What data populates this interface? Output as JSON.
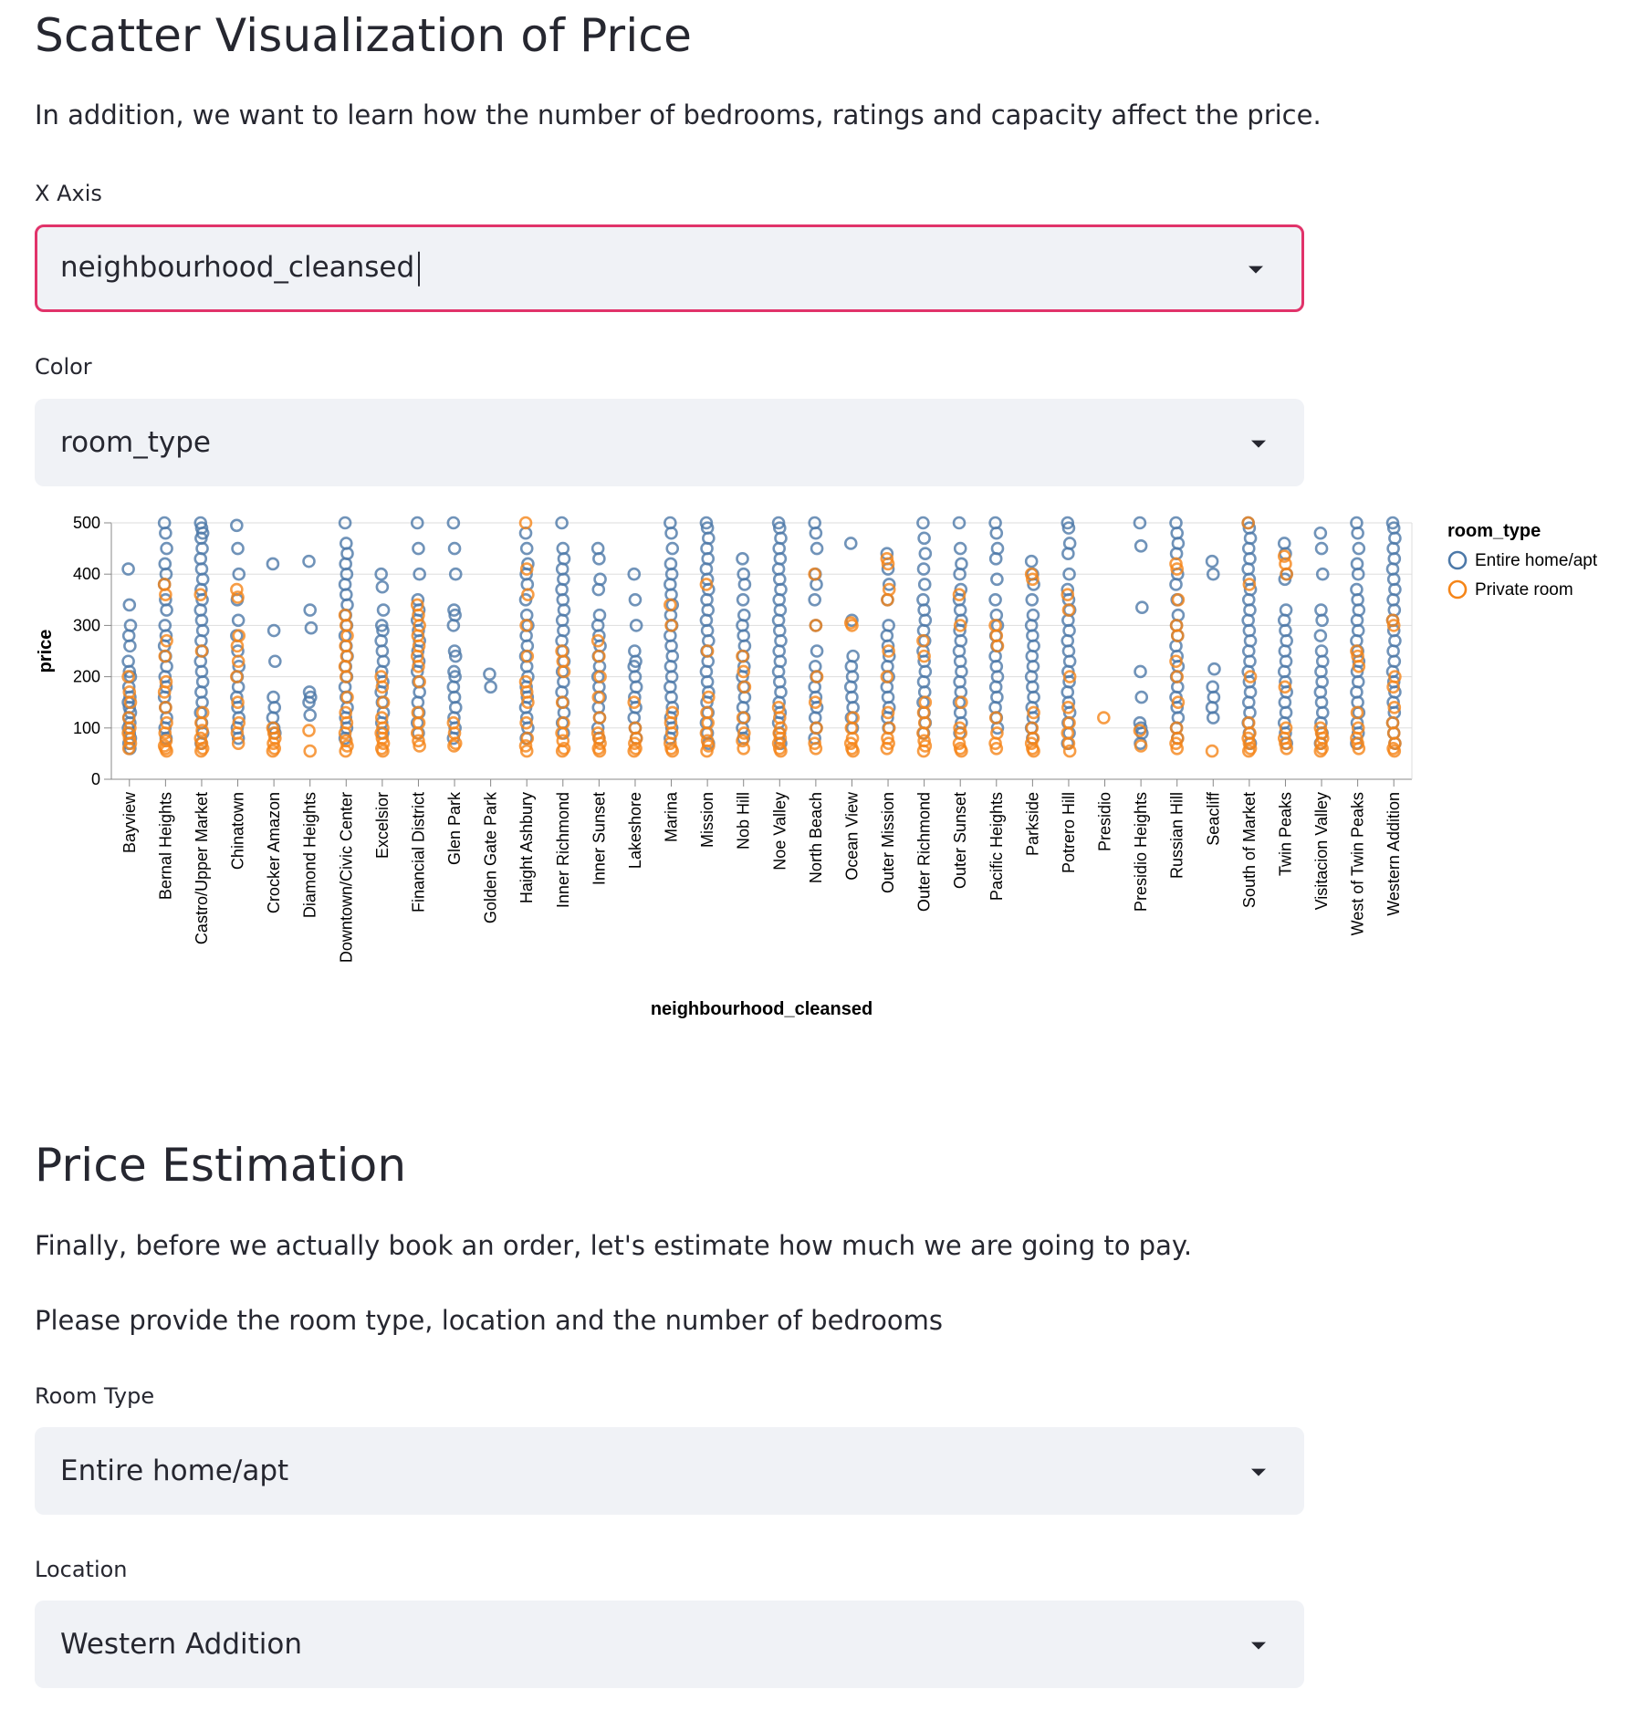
{
  "scatter_section": {
    "title": "Scatter Visualization of Price",
    "description": "In addition, we want to learn how the number of bedrooms, ratings and capacity affect the price.",
    "x_axis_label": "X Axis",
    "x_axis_value": "neighbourhood_cleansed",
    "color_label": "Color",
    "color_value": "room_type"
  },
  "estimation_section": {
    "title": "Price Estimation",
    "paragraph1": "Finally, before we actually book an order, let's estimate how much we are going to pay.",
    "paragraph2": "Please provide the room type, location and the number of bedrooms",
    "room_type_label": "Room Type",
    "room_type_value": "Entire home/apt",
    "location_label": "Location",
    "location_value": "Western Addition"
  },
  "colors": {
    "entire": "#4c78a8",
    "private": "#f58518",
    "focus_border": "#e1336a"
  },
  "chart_data": {
    "type": "scatter",
    "xlabel": "neighbourhood_cleansed",
    "ylabel": "price",
    "ylim": [
      0,
      500
    ],
    "yticks": [
      0,
      100,
      200,
      300,
      400,
      500
    ],
    "grid": true,
    "legend": {
      "title": "room_type",
      "placement": "right",
      "entries": [
        "Entire home/apt",
        "Private room"
      ]
    },
    "categories": [
      "Bayview",
      "Bernal Heights",
      "Castro/Upper Market",
      "Chinatown",
      "Crocker Amazon",
      "Diamond Heights",
      "Downtown/Civic Center",
      "Excelsior",
      "Financial District",
      "Glen Park",
      "Golden Gate Park",
      "Haight Ashbury",
      "Inner Richmond",
      "Inner Sunset",
      "Lakeshore",
      "Marina",
      "Mission",
      "Nob Hill",
      "Noe Valley",
      "North Beach",
      "Ocean View",
      "Outer Mission",
      "Outer Richmond",
      "Outer Sunset",
      "Pacific Heights",
      "Parkside",
      "Potrero Hill",
      "Presidio",
      "Presidio Heights",
      "Russian Hill",
      "Seacliff",
      "South of Market",
      "Twin Peaks",
      "Visitacion Valley",
      "West of Twin Peaks",
      "Western Addition"
    ],
    "series": [
      {
        "name": "Entire home/apt",
        "values": [
          [
            410,
            340,
            300,
            280,
            260,
            230,
            210,
            200,
            180,
            160,
            150,
            140,
            130,
            120,
            110,
            100,
            90,
            80,
            70,
            60
          ],
          [
            500,
            480,
            450,
            420,
            400,
            380,
            350,
            330,
            300,
            280,
            260,
            240,
            220,
            200,
            180,
            160,
            140,
            120,
            100,
            80
          ],
          [
            500,
            490,
            480,
            470,
            450,
            430,
            410,
            390,
            370,
            350,
            330,
            310,
            290,
            270,
            250,
            230,
            210,
            190,
            170,
            150,
            130,
            110,
            90,
            70
          ],
          [
            495,
            450,
            400,
            350,
            310,
            280,
            250,
            220,
            200,
            180,
            160,
            140,
            120,
            100,
            80
          ],
          [
            420,
            290,
            230,
            160,
            140,
            120,
            100,
            90
          ],
          [
            425,
            330,
            295,
            170,
            160,
            150,
            125
          ],
          [
            500,
            460,
            440,
            420,
            400,
            380,
            360,
            340,
            320,
            300,
            280,
            260,
            240,
            220,
            200,
            180,
            160,
            140,
            120,
            100,
            80
          ],
          [
            400,
            375,
            330,
            300,
            290,
            270,
            250,
            230,
            210,
            190,
            170,
            150,
            130,
            110,
            90
          ],
          [
            500,
            450,
            400,
            350,
            330,
            310,
            290,
            270,
            250,
            230,
            210,
            190,
            170,
            150,
            130,
            110,
            90
          ],
          [
            500,
            450,
            400,
            330,
            320,
            300,
            250,
            240,
            210,
            200,
            180,
            160,
            140,
            120,
            100,
            80
          ],
          [
            205,
            180
          ],
          [
            480,
            450,
            420,
            400,
            380,
            350,
            320,
            300,
            280,
            260,
            240,
            220,
            200,
            180,
            160,
            140,
            120,
            100,
            80
          ],
          [
            500,
            450,
            430,
            410,
            390,
            370,
            350,
            330,
            310,
            290,
            270,
            250,
            230,
            210,
            190,
            170,
            150,
            130,
            110,
            90
          ],
          [
            450,
            430,
            390,
            370,
            320,
            300,
            280,
            260,
            240,
            220,
            200,
            180,
            160,
            140,
            120,
            100,
            80
          ],
          [
            400,
            350,
            300,
            250,
            230,
            220,
            200,
            180,
            160,
            140,
            120,
            100,
            80
          ],
          [
            500,
            480,
            450,
            420,
            400,
            380,
            360,
            340,
            320,
            300,
            280,
            260,
            240,
            220,
            200,
            180,
            160,
            140,
            120,
            100,
            80
          ],
          [
            500,
            490,
            470,
            450,
            430,
            410,
            390,
            370,
            350,
            330,
            310,
            290,
            270,
            250,
            230,
            210,
            190,
            170,
            150,
            130,
            110,
            90,
            70
          ],
          [
            430,
            400,
            380,
            350,
            320,
            300,
            280,
            260,
            240,
            220,
            200,
            180,
            160,
            140,
            120,
            100,
            80
          ],
          [
            500,
            490,
            470,
            450,
            430,
            410,
            390,
            370,
            350,
            330,
            310,
            290,
            270,
            250,
            230,
            210,
            190,
            170,
            150,
            130,
            110,
            90,
            70
          ],
          [
            500,
            480,
            450,
            400,
            380,
            350,
            300,
            250,
            220,
            200,
            180,
            160,
            140,
            120,
            100,
            80
          ],
          [
            460,
            310,
            240,
            220,
            200,
            180,
            160,
            140,
            120,
            100
          ],
          [
            440,
            410,
            380,
            350,
            300,
            280,
            260,
            240,
            220,
            200,
            180,
            160,
            140,
            120,
            100
          ],
          [
            500,
            470,
            440,
            410,
            380,
            350,
            330,
            310,
            290,
            270,
            250,
            230,
            210,
            190,
            170,
            150,
            130,
            110,
            90
          ],
          [
            500,
            450,
            420,
            400,
            370,
            350,
            330,
            310,
            290,
            270,
            250,
            230,
            210,
            190,
            170,
            150,
            130,
            110,
            90
          ],
          [
            500,
            480,
            450,
            430,
            390,
            350,
            320,
            300,
            280,
            260,
            240,
            220,
            200,
            180,
            160,
            140,
            120,
            100
          ],
          [
            425,
            400,
            380,
            350,
            320,
            300,
            280,
            260,
            240,
            220,
            200,
            180,
            160,
            140,
            120,
            100,
            80
          ],
          [
            500,
            490,
            460,
            440,
            400,
            370,
            350,
            330,
            310,
            290,
            270,
            250,
            230,
            210,
            190,
            170,
            150,
            130,
            110,
            90,
            70
          ],
          [],
          [
            500,
            455,
            335,
            210,
            160,
            110,
            100,
            90,
            70
          ],
          [
            500,
            480,
            460,
            440,
            400,
            380,
            350,
            320,
            300,
            280,
            260,
            240,
            220,
            200,
            180,
            160,
            140,
            120,
            100,
            80
          ],
          [
            425,
            400,
            215,
            180,
            160,
            140,
            120
          ],
          [
            500,
            490,
            470,
            450,
            430,
            410,
            390,
            370,
            350,
            330,
            310,
            290,
            270,
            250,
            230,
            210,
            190,
            170,
            150,
            130,
            110,
            90,
            70
          ],
          [
            460,
            440,
            400,
            390,
            330,
            310,
            290,
            270,
            250,
            230,
            210,
            190,
            170,
            150,
            130,
            110,
            90,
            70
          ],
          [
            480,
            450,
            400,
            330,
            310,
            280,
            250,
            230,
            210,
            190,
            170,
            150,
            130,
            110,
            90,
            70
          ],
          [
            500,
            480,
            450,
            420,
            400,
            370,
            350,
            330,
            310,
            290,
            270,
            250,
            230,
            210,
            190,
            170,
            150,
            130,
            110,
            90,
            70
          ],
          [
            500,
            490,
            470,
            450,
            430,
            410,
            390,
            370,
            350,
            330,
            310,
            290,
            270,
            250,
            230,
            210,
            190,
            170,
            150,
            130,
            110,
            90,
            70
          ]
        ]
      },
      {
        "name": "Private room",
        "values": [
          [
            200,
            170,
            150,
            120,
            100,
            90,
            80,
            70,
            60
          ],
          [
            380,
            360,
            270,
            240,
            190,
            170,
            140,
            110,
            90,
            75,
            65,
            60,
            55
          ],
          [
            360,
            250,
            130,
            110,
            95,
            80,
            70,
            60,
            55
          ],
          [
            370,
            355,
            280,
            260,
            230,
            200,
            150,
            110,
            90,
            70
          ],
          [
            100,
            90,
            80,
            70,
            60,
            55
          ],
          [
            95,
            55
          ],
          [
            320,
            300,
            280,
            260,
            240,
            220,
            200,
            160,
            130,
            110,
            90,
            75,
            65,
            55
          ],
          [
            200,
            180,
            150,
            120,
            100,
            90,
            80,
            70,
            60,
            55
          ],
          [
            340,
            320,
            300,
            280,
            260,
            240,
            220,
            190,
            130,
            110,
            90,
            75,
            65
          ],
          [
            110,
            90,
            70,
            65
          ],
          [],
          [
            500,
            410,
            360,
            300,
            240,
            190,
            170,
            150,
            110,
            80,
            65,
            55
          ],
          [
            250,
            230,
            210,
            150,
            110,
            90,
            75,
            60,
            55
          ],
          [
            270,
            240,
            200,
            160,
            120,
            90,
            80,
            70,
            60,
            55
          ],
          [
            150,
            100,
            80,
            70,
            60,
            55
          ],
          [
            340,
            300,
            130,
            110,
            90,
            70,
            60,
            55
          ],
          [
            380,
            250,
            160,
            130,
            110,
            90,
            75,
            65,
            55
          ],
          [
            240,
            210,
            180,
            120,
            90,
            75,
            60
          ],
          [
            140,
            120,
            100,
            90,
            80,
            70,
            60,
            55
          ],
          [
            400,
            300,
            200,
            150,
            100,
            70,
            60
          ],
          [
            305,
            300,
            120,
            100,
            80,
            70,
            60,
            55
          ],
          [
            430,
            420,
            370,
            350,
            250,
            200,
            130,
            100,
            80,
            70,
            60
          ],
          [
            270,
            240,
            150,
            130,
            110,
            90,
            75,
            65,
            55
          ],
          [
            360,
            300,
            150,
            100,
            90,
            70,
            60,
            55
          ],
          [
            300,
            280,
            260,
            120,
            90,
            70,
            60
          ],
          [
            400,
            390,
            130,
            100,
            80,
            70,
            60,
            55
          ],
          [
            360,
            330,
            200,
            140,
            110,
            90,
            70,
            55
          ],
          [
            120
          ],
          [
            95,
            65
          ],
          [
            420,
            410,
            350,
            300,
            280,
            230,
            200,
            150,
            100,
            80,
            70,
            60
          ],
          [
            55
          ],
          [
            500,
            380,
            200,
            110,
            90,
            80,
            70,
            60,
            55
          ],
          [
            435,
            420,
            400,
            180,
            100,
            80,
            70,
            60
          ],
          [
            100,
            90,
            80,
            70,
            60,
            55
          ],
          [
            250,
            240,
            220,
            130,
            100,
            80,
            70,
            60
          ],
          [
            310,
            300,
            200,
            180,
            140,
            110,
            90,
            70,
            60,
            55
          ]
        ]
      }
    ]
  }
}
